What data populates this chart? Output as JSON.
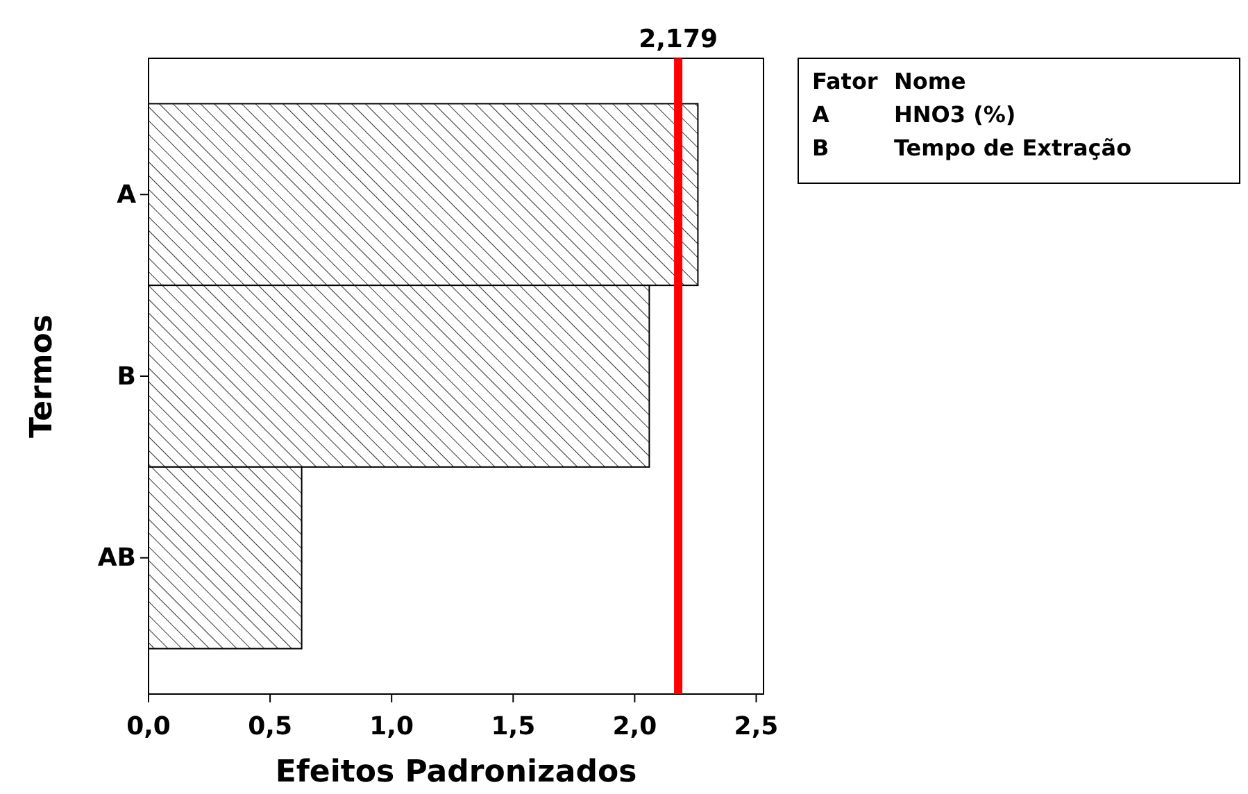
{
  "chart_data": {
    "type": "bar",
    "orientation": "horizontal",
    "xlabel": "Efeitos Padronizados",
    "ylabel": "Termos",
    "categories": [
      "A",
      "B",
      "AB"
    ],
    "values": [
      2.26,
      2.06,
      0.63
    ],
    "color": "#000000",
    "xlim": [
      0,
      2.53
    ],
    "xticks": [
      {
        "value": 0,
        "label": "0,0"
      },
      {
        "value": 0.5,
        "label": "0,5"
      },
      {
        "value": 1,
        "label": "1,0"
      },
      {
        "value": 1.5,
        "label": "1,5"
      },
      {
        "value": 2,
        "label": "2,0"
      },
      {
        "value": 2.5,
        "label": "2,5"
      }
    ],
    "ref_lines": [
      {
        "axis": "x",
        "value": 2.179,
        "label": "2,179",
        "color": "#ff0000"
      }
    ],
    "annotations": [
      "Fator",
      "Nome",
      "A",
      "HNO3 (%)",
      "B",
      "Tempo de Extração"
    ],
    "grid": false
  }
}
